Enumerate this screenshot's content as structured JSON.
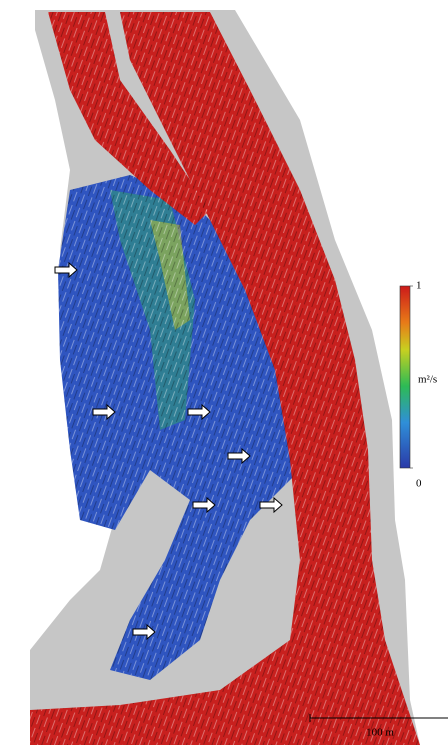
{
  "colorbar": {
    "range": [
      0,
      1
    ],
    "unit": "m²/s"
  },
  "scale_bar": {
    "label": "100 m"
  }
}
